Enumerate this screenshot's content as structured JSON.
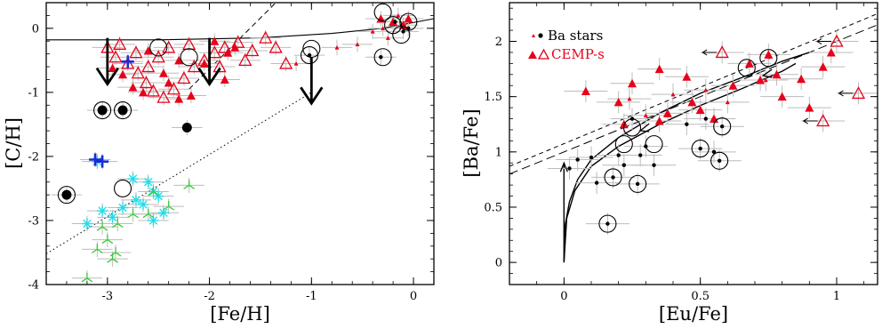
{
  "chart_data": [
    {
      "type": "scatter",
      "xlabel": "[Fe/H]",
      "ylabel": "[C/H]",
      "xlim": [
        -3.6,
        0.2
      ],
      "ylim": [
        -4.0,
        0.4
      ],
      "xticks": [
        "-3",
        "-2",
        "-1",
        "0"
      ],
      "yticks": [
        "-4",
        "-3",
        "-2",
        "-1",
        "0"
      ],
      "colors": {
        "cemp": "#e8001a",
        "ba": "#000000",
        "cyan": "#22dde8",
        "green": "#33cc33",
        "blue": "#1a2bd6",
        "error": "#b8b8b8"
      },
      "series": [
        {
          "marker": "open-triangle",
          "color": "#e8001a",
          "points": [
            [
              -3.0,
              -0.3
            ],
            [
              -2.92,
              -0.45
            ],
            [
              -2.8,
              -0.55
            ],
            [
              -2.7,
              -0.7
            ],
            [
              -2.62,
              -0.85
            ],
            [
              -2.55,
              -0.98
            ],
            [
              -2.45,
              -1.08
            ],
            [
              -2.35,
              -0.95
            ],
            [
              -2.25,
              -0.78
            ],
            [
              -2.15,
              -0.6
            ],
            [
              -2.05,
              -0.5
            ],
            [
              -1.95,
              -0.38
            ],
            [
              -1.85,
              -0.3
            ],
            [
              -1.72,
              -0.22
            ],
            [
              -1.58,
              -0.35
            ],
            [
              -1.45,
              -0.15
            ],
            [
              -1.35,
              -0.3
            ],
            [
              -1.25,
              -0.55
            ],
            [
              -2.72,
              -0.38
            ],
            [
              -2.88,
              -0.25
            ],
            [
              -2.2,
              -0.25
            ],
            [
              -1.9,
              -0.6
            ],
            [
              -2.6,
              -0.6
            ],
            [
              -1.65,
              -0.5
            ],
            [
              -2.4,
              -0.3
            ],
            [
              -2.5,
              -0.45
            ]
          ]
        },
        {
          "marker": "filled-triangle",
          "color": "#e8001a",
          "points": [
            [
              -2.95,
              -0.62
            ],
            [
              -2.85,
              -0.72
            ],
            [
              -2.75,
              -0.92
            ],
            [
              -2.65,
              -1.0
            ],
            [
              -2.45,
              -0.7
            ],
            [
              -2.3,
              -0.5
            ],
            [
              -2.18,
              -1.05
            ],
            [
              -2.05,
              -0.55
            ],
            [
              -1.95,
              -0.2
            ],
            [
              -1.85,
              -0.8
            ],
            [
              -1.75,
              -0.3
            ],
            [
              -2.4,
              -0.85
            ],
            [
              -2.3,
              -1.1
            ],
            [
              -1.82,
              -0.38
            ],
            [
              -2.6,
              -0.35
            ],
            [
              -0.32,
              0.15
            ],
            [
              -0.2,
              0.1
            ],
            [
              -0.1,
              0.05
            ],
            [
              -0.05,
              0.15
            ]
          ]
        },
        {
          "marker": "small-triangle",
          "color": "#e8001a",
          "points": [
            [
              -0.75,
              -0.3
            ],
            [
              -0.55,
              -0.25
            ],
            [
              -0.4,
              -0.05
            ],
            [
              -0.3,
              0.0
            ],
            [
              -0.25,
              -0.15
            ],
            [
              -0.15,
              0.2
            ],
            [
              -1.15,
              -0.55
            ]
          ]
        },
        {
          "marker": "dot",
          "color": "#000000",
          "points": [
            [
              -3.4,
              -2.6
            ],
            [
              -3.05,
              -1.28
            ],
            [
              -2.85,
              -1.28
            ],
            [
              -2.22,
              -1.55
            ],
            [
              -0.32,
              -0.45
            ],
            [
              -1.02,
              -0.42
            ],
            [
              -0.18,
              0.1
            ],
            [
              -0.1,
              -0.05
            ],
            [
              -0.05,
              0.0
            ]
          ]
        },
        {
          "marker": "cyan-asterisk",
          "color": "#22dde8",
          "points": [
            [
              -3.1,
              -2.08
            ],
            [
              -2.75,
              -2.35
            ],
            [
              -2.6,
              -2.4
            ],
            [
              -2.55,
              -2.55
            ],
            [
              -2.72,
              -2.68
            ],
            [
              -2.65,
              -2.75
            ],
            [
              -2.5,
              -2.62
            ],
            [
              -2.85,
              -2.8
            ],
            [
              -2.95,
              -2.95
            ],
            [
              -3.05,
              -2.85
            ],
            [
              -3.2,
              -3.05
            ],
            [
              -2.45,
              -2.88
            ],
            [
              -2.55,
              -3.0
            ]
          ]
        },
        {
          "marker": "green-tripod",
          "color": "#33cc33",
          "points": [
            [
              -2.55,
              -2.55
            ],
            [
              -2.4,
              -2.78
            ],
            [
              -2.2,
              -2.45
            ],
            [
              -2.75,
              -2.9
            ],
            [
              -2.6,
              -2.9
            ],
            [
              -2.9,
              -3.05
            ],
            [
              -3.05,
              -3.1
            ],
            [
              -3.0,
              -3.3
            ],
            [
              -2.92,
              -3.5
            ],
            [
              -3.1,
              -3.45
            ],
            [
              -3.2,
              -3.9
            ],
            [
              -2.95,
              -3.6
            ]
          ]
        },
        {
          "marker": "blue-cross",
          "color": "#1a2bd6",
          "points": [
            [
              -3.12,
              -2.05
            ],
            [
              -3.05,
              -2.08
            ],
            [
              -2.8,
              -0.52
            ]
          ]
        },
        {
          "marker": "open-circle",
          "points": [
            [
              -3.4,
              -2.6
            ],
            [
              -3.05,
              -1.28
            ],
            [
              -2.85,
              -1.28
            ],
            [
              -2.5,
              -0.3
            ],
            [
              -2.85,
              -2.5
            ],
            [
              -1.02,
              -0.42
            ],
            [
              -0.3,
              0.25
            ],
            [
              -0.2,
              0.05
            ],
            [
              -0.12,
              -0.1
            ],
            [
              -0.05,
              0.1
            ],
            [
              -2.2,
              -0.45
            ],
            [
              -1.0,
              -0.32
            ],
            [
              -0.3,
              -0.45
            ]
          ]
        }
      ],
      "limit_arrows": [
        [
          -3.0,
          -0.15
        ],
        [
          -2.0,
          -0.15
        ],
        [
          -1.0,
          -0.45
        ]
      ],
      "lines": {
        "solid_curve": [
          [
            -3.6,
            -0.18
          ],
          [
            -2.5,
            -0.18
          ],
          [
            -1.5,
            -0.15
          ],
          [
            -0.8,
            -0.08
          ],
          [
            -0.3,
            0.0
          ],
          [
            0.2,
            0.15
          ]
        ],
        "dashed_line": [
          [
            -2.2,
            -0.95
          ],
          [
            -1.35,
            0.4
          ]
        ],
        "dotted_line": [
          [
            -3.6,
            -3.52
          ],
          [
            -1.0,
            -1.0
          ]
        ]
      }
    },
    {
      "type": "scatter",
      "xlabel": "[Eu/Fe]",
      "ylabel": "[Ba/Fe]",
      "xlim": [
        -0.2,
        1.15
      ],
      "ylim": [
        -0.2,
        2.35
      ],
      "xticks": [
        "0",
        "0.5",
        "1"
      ],
      "yticks": [
        "0",
        "0.5",
        "1",
        "1.5",
        "2"
      ],
      "legend": {
        "position": "top-left",
        "entries": [
          "Ba stars",
          "CEMP-s"
        ]
      },
      "series": [
        {
          "name": "Ba stars",
          "marker": "dot",
          "color": "#000000",
          "points": [
            [
              0.05,
              0.93
            ],
            [
              0.12,
              0.72
            ],
            [
              0.16,
              0.35
            ],
            [
              0.18,
              0.77
            ],
            [
              0.2,
              0.97
            ],
            [
              0.22,
              0.88
            ],
            [
              0.25,
              1.3
            ],
            [
              0.27,
              0.71
            ],
            [
              0.28,
              0.97
            ],
            [
              0.3,
              1.05
            ],
            [
              0.33,
              0.88
            ],
            [
              0.45,
              1.25
            ],
            [
              0.5,
              1.03
            ],
            [
              0.52,
              1.3
            ],
            [
              0.55,
              1.0
            ],
            [
              0.57,
              0.92
            ],
            [
              0.58,
              1.23
            ],
            [
              0.1,
              0.95
            ],
            [
              0.02,
              0.85
            ]
          ]
        },
        {
          "name": "CEMP-s",
          "marker": "filled-triangle",
          "color": "#e8001a",
          "points": [
            [
              0.2,
              1.45
            ],
            [
              0.22,
              1.25
            ],
            [
              0.35,
              1.28
            ],
            [
              0.38,
              1.35
            ],
            [
              0.45,
              1.68
            ],
            [
              0.5,
              1.38
            ],
            [
              0.55,
              1.3
            ],
            [
              0.62,
              1.6
            ],
            [
              0.68,
              1.8
            ],
            [
              0.72,
              1.65
            ],
            [
              0.75,
              1.88
            ],
            [
              0.78,
              1.7
            ],
            [
              0.8,
              1.5
            ],
            [
              0.87,
              1.66
            ],
            [
              0.9,
              1.4
            ],
            [
              0.95,
              1.77
            ],
            [
              0.98,
              1.9
            ],
            [
              0.25,
              1.62
            ],
            [
              0.08,
              1.55
            ],
            [
              0.35,
              1.75
            ],
            [
              0.47,
              1.45
            ]
          ]
        },
        {
          "name": "",
          "marker": "small-triangle",
          "color": "#e8001a",
          "points": [
            [
              0.24,
              1.48
            ],
            [
              0.3,
              1.33
            ],
            [
              0.6,
              1.45
            ],
            [
              0.74,
              1.65
            ],
            [
              0.4,
              1.52
            ],
            [
              0.52,
              1.56
            ]
          ]
        },
        {
          "name": "",
          "marker": "open-triangle",
          "color": "#e8001a",
          "points": [
            [
              0.58,
              1.9
            ],
            [
              1.0,
              2.0
            ],
            [
              1.08,
              1.53
            ],
            [
              0.95,
              1.28
            ]
          ]
        },
        {
          "name": "",
          "marker": "open-circle",
          "points": [
            [
              0.16,
              0.35
            ],
            [
              0.18,
              0.77
            ],
            [
              0.25,
              1.22
            ],
            [
              0.27,
              0.71
            ],
            [
              0.22,
              1.07
            ],
            [
              0.33,
              1.07
            ],
            [
              0.5,
              1.03
            ],
            [
              0.57,
              0.92
            ],
            [
              0.58,
              1.23
            ],
            [
              0.67,
              1.76
            ],
            [
              0.75,
              1.85
            ]
          ]
        }
      ],
      "left_arrows": [
        [
          1.0,
          2.0
        ],
        [
          1.08,
          1.53
        ],
        [
          0.95,
          1.28
        ],
        [
          0.58,
          1.9
        ]
      ],
      "lines": {
        "dashed_1": [
          [
            -0.2,
            0.87
          ],
          [
            1.15,
            2.25
          ]
        ],
        "dashed_2": [
          [
            -0.2,
            0.8
          ],
          [
            1.15,
            2.15
          ]
        ],
        "solid_curve_1": [
          [
            0.0,
            0.0
          ],
          [
            0.005,
            0.35
          ],
          [
            0.02,
            0.55
          ],
          [
            0.05,
            0.75
          ],
          [
            0.1,
            0.93
          ],
          [
            0.2,
            1.13
          ],
          [
            0.35,
            1.35
          ],
          [
            0.5,
            1.53
          ],
          [
            0.65,
            1.67
          ],
          [
            0.8,
            1.82
          ],
          [
            0.9,
            1.9
          ]
        ],
        "solid_curve_2": [
          [
            0.0,
            0.0
          ],
          [
            0.01,
            0.4
          ],
          [
            0.04,
            0.65
          ],
          [
            0.1,
            0.87
          ],
          [
            0.2,
            1.05
          ],
          [
            0.35,
            1.25
          ],
          [
            0.5,
            1.42
          ],
          [
            0.65,
            1.57
          ],
          [
            0.8,
            1.73
          ],
          [
            0.85,
            1.8
          ]
        ],
        "vertical": [
          [
            0.0,
            0.0
          ],
          [
            0.0,
            0.9
          ]
        ]
      }
    }
  ]
}
